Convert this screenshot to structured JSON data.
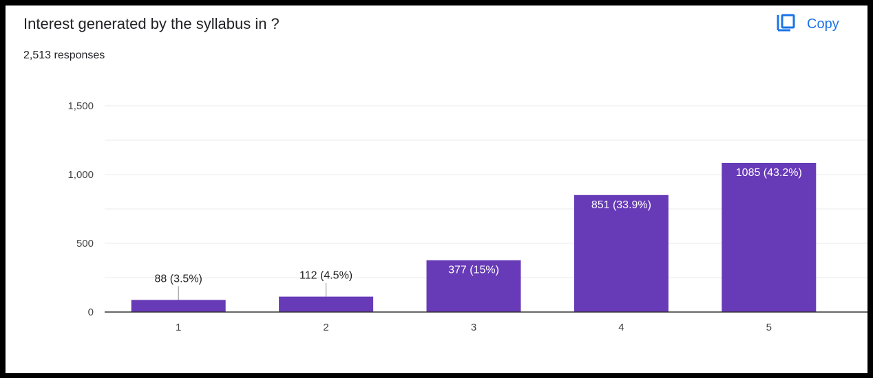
{
  "header": {
    "title": "Interest generated by the syllabus in ?",
    "responses": "2,513 responses",
    "copy_label": "Copy"
  },
  "colors": {
    "bar": "#673ab7",
    "accent": "#1a73e8",
    "gridline": "#ebebeb",
    "axis": "#333333"
  },
  "icons": {
    "copy": "copy-icon"
  },
  "chart_data": {
    "type": "bar",
    "categories": [
      "1",
      "2",
      "3",
      "4",
      "5"
    ],
    "values": [
      88,
      112,
      377,
      851,
      1085
    ],
    "data_labels": [
      "88 (3.5%)",
      "112 (4.5%)",
      "377 (15%)",
      "851 (33.9%)",
      "1085 (43.2%)"
    ],
    "y_ticks": [
      0,
      500,
      1000,
      1500
    ],
    "y_tick_labels": [
      "0",
      "500",
      "1,000",
      "1,500"
    ],
    "ylim": [
      0,
      1500
    ],
    "grid": true
  }
}
